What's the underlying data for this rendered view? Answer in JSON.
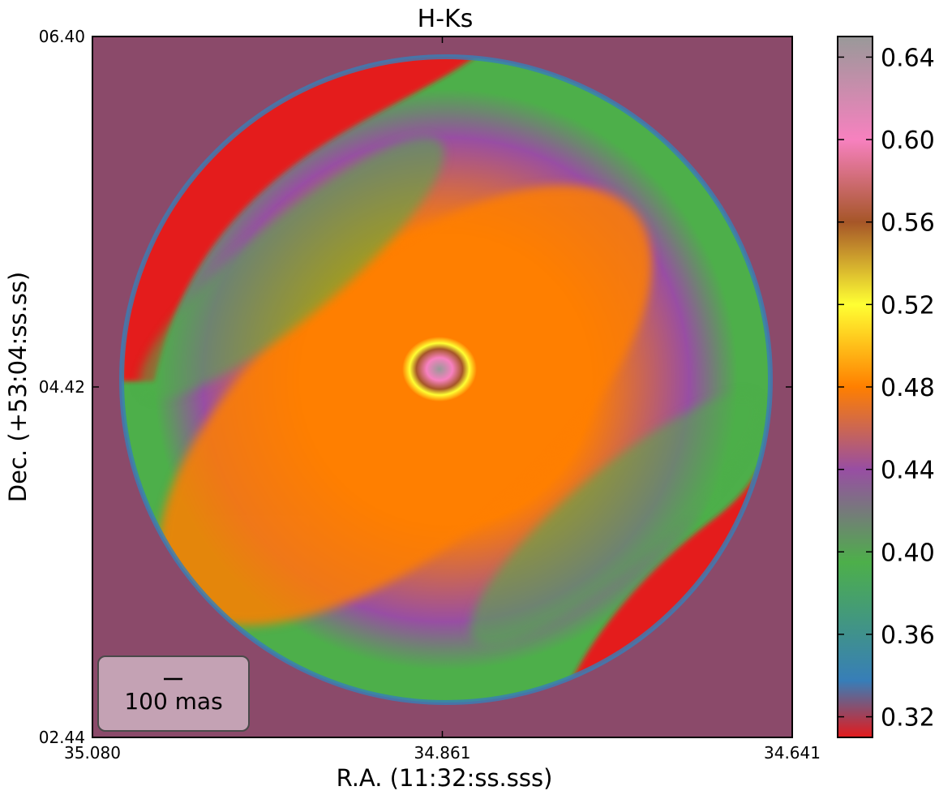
{
  "chart_data": {
    "type": "heatmap",
    "title": "H-Ks",
    "xlabel": "R.A. (11:32:ss.sss)",
    "ylabel": "Dec. (+53:04:ss.ss)",
    "x_ticks": [
      "35.080",
      "34.861",
      "34.641"
    ],
    "y_ticks": [
      "06.40",
      "04.42",
      "02.44"
    ],
    "xlim": [
      35.08,
      34.641
    ],
    "ylim": [
      2.44,
      6.4
    ],
    "colorbar": {
      "range": [
        0.31,
        0.65
      ],
      "ticks": [
        "0.32",
        "0.36",
        "0.40",
        "0.44",
        "0.48",
        "0.52",
        "0.56",
        "0.60",
        "0.64"
      ],
      "colormap": [
        {
          "value": 0.31,
          "color": "#e41a1c"
        },
        {
          "value": 0.3375,
          "color": "#377eb8"
        },
        {
          "value": 0.395,
          "color": "#4daf4a"
        },
        {
          "value": 0.44,
          "color": "#984ea3"
        },
        {
          "value": 0.48,
          "color": "#ff7f00"
        },
        {
          "value": 0.52,
          "color": "#ffff33"
        },
        {
          "value": 0.56,
          "color": "#a65628"
        },
        {
          "value": 0.6,
          "color": "#f781bf"
        },
        {
          "value": 0.65,
          "color": "#999999"
        }
      ]
    },
    "background_color": "#8b4a6a",
    "scalebar": {
      "label": "100 mas"
    },
    "grid": false
  }
}
